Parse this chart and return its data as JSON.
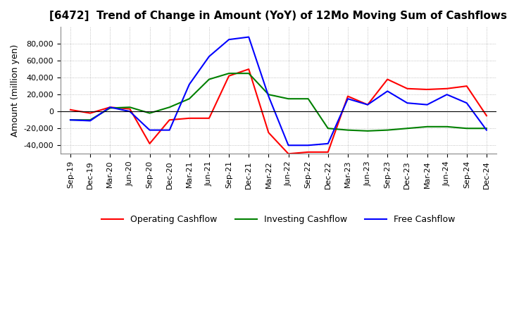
{
  "title": "[6472]  Trend of Change in Amount (YoY) of 12Mo Moving Sum of Cashflows",
  "ylabel": "Amount (million yen)",
  "ylim": [
    -50000,
    100000
  ],
  "yticks": [
    -40000,
    -20000,
    0,
    20000,
    40000,
    60000,
    80000
  ],
  "x_labels": [
    "Sep-19",
    "Dec-19",
    "Mar-20",
    "Jun-20",
    "Sep-20",
    "Dec-20",
    "Mar-21",
    "Jun-21",
    "Sep-21",
    "Dec-21",
    "Mar-22",
    "Jun-22",
    "Sep-22",
    "Dec-22",
    "Mar-23",
    "Jun-23",
    "Sep-23",
    "Dec-23",
    "Mar-24",
    "Jun-24",
    "Sep-24",
    "Dec-24"
  ],
  "operating": [
    2000,
    -2000,
    5000,
    3000,
    -38000,
    -10000,
    -8000,
    -8000,
    42000,
    50000,
    -25000,
    -50000,
    -48000,
    -48000,
    18000,
    8000,
    38000,
    27000,
    26000,
    27000,
    30000,
    -5000
  ],
  "investing": [
    -10000,
    -10000,
    4000,
    5000,
    -2000,
    5000,
    15000,
    38000,
    45000,
    45000,
    20000,
    15000,
    15000,
    -20000,
    -22000,
    -23000,
    -22000,
    -20000,
    -18000,
    -18000,
    -20000,
    -20000
  ],
  "free": [
    -10000,
    -11000,
    5000,
    0,
    -22000,
    -22000,
    32000,
    65000,
    85000,
    88000,
    18000,
    -40000,
    -40000,
    -38000,
    15000,
    8000,
    24000,
    10000,
    8000,
    20000,
    10000,
    -22000
  ],
  "operating_color": "#ff0000",
  "investing_color": "#008000",
  "free_color": "#0000ff",
  "background_color": "#ffffff",
  "grid_color": "#b0b0b0",
  "title_fontsize": 11,
  "axis_fontsize": 9,
  "tick_fontsize": 8
}
